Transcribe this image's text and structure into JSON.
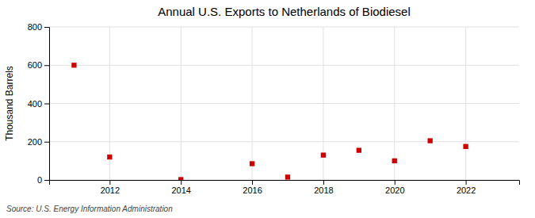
{
  "chart_data": {
    "type": "scatter",
    "title": "Annual U.S. Exports to Netherlands of Biodiesel",
    "ylabel": "Thousand Barrels",
    "source": "Source: U.S. Energy Information Administration",
    "x": [
      2011,
      2012,
      2014,
      2016,
      2017,
      2018,
      2019,
      2020,
      2021,
      2022
    ],
    "values": [
      600,
      120,
      2,
      85,
      15,
      130,
      155,
      100,
      205,
      175
    ],
    "xlim": [
      2010.3,
      2023.5
    ],
    "ylim": [
      0,
      800
    ],
    "xticks": [
      2012,
      2014,
      2016,
      2018,
      2020,
      2022
    ],
    "yticks": [
      0,
      200,
      400,
      600,
      800
    ],
    "color": "#cc0000",
    "marker": "square",
    "grid": true
  }
}
